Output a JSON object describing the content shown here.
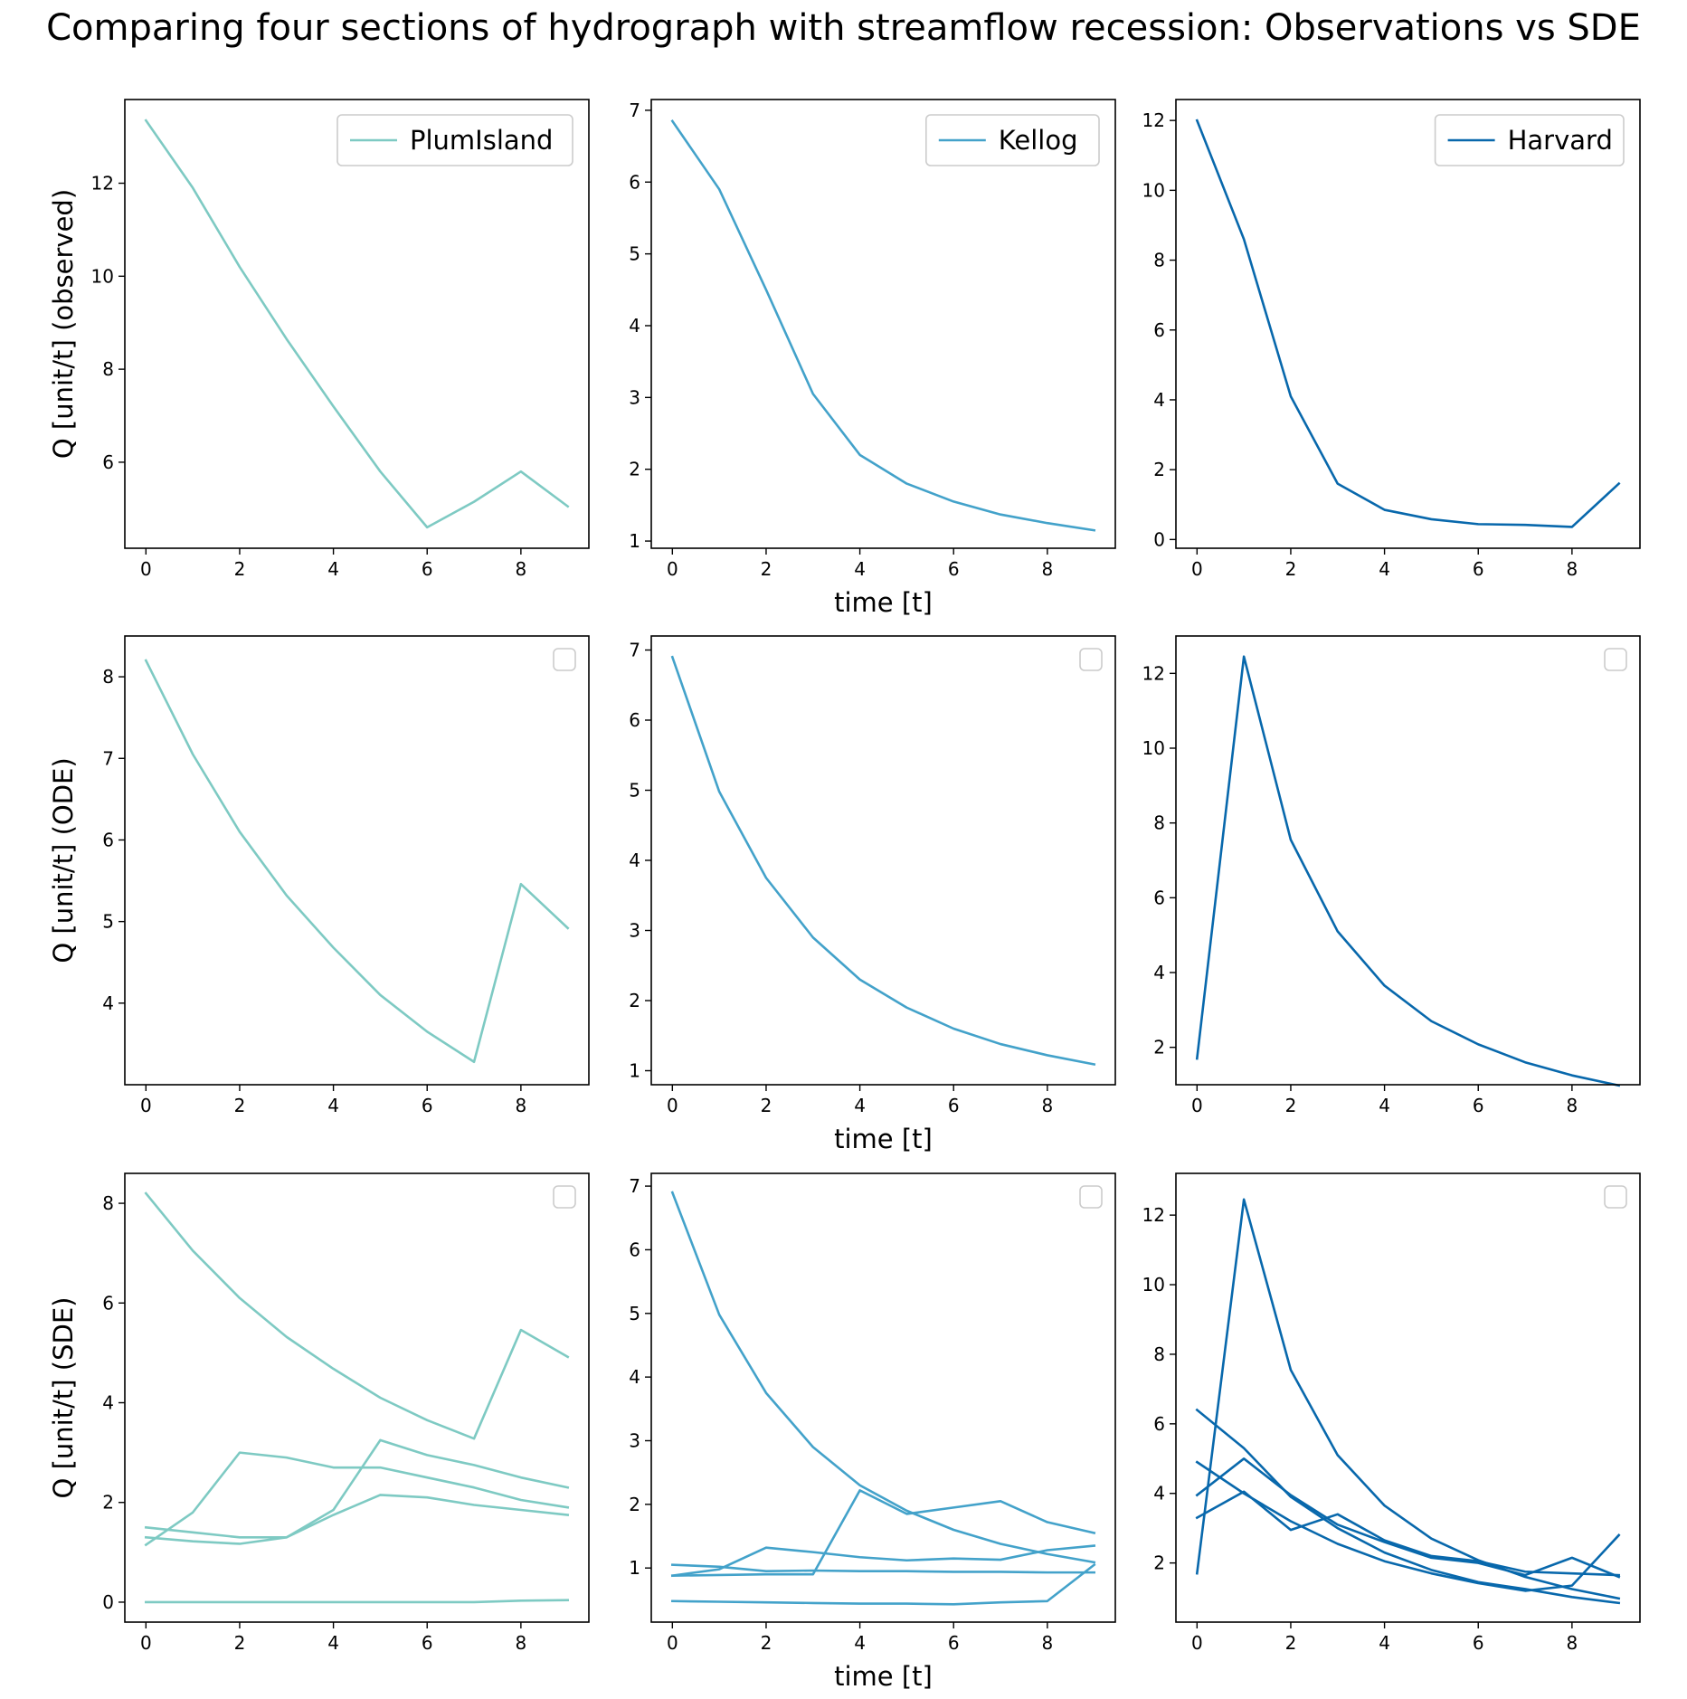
{
  "figure": {
    "title": "Comparing four sections of hydrograph with streamflow recession: Observations vs SDE"
  },
  "colors": {
    "PlumIsland": "#7ecac3",
    "Kellog": "#43a2ca",
    "Harvard": "#0868ac"
  },
  "chart_data": [
    {
      "type": "line",
      "panel": "row1-col1",
      "ylabel": "Q [unit/t] (observed)",
      "xlabel": "",
      "legend": {
        "visible": true,
        "placement": "top-right",
        "entries": [
          "PlumIsland"
        ]
      },
      "xlim": [
        -0.45,
        9.45
      ],
      "ylim": [
        4.15,
        13.8
      ],
      "xticks": [
        0,
        2,
        4,
        6,
        8
      ],
      "yticks": [
        6,
        8,
        10,
        12
      ],
      "series": [
        {
          "name": "PlumIsland",
          "color_key": "PlumIsland",
          "x": [
            0,
            1,
            2,
            3,
            4,
            5,
            6,
            7,
            8,
            9
          ],
          "y": [
            13.35,
            11.9,
            10.2,
            8.65,
            7.2,
            5.8,
            4.6,
            5.15,
            5.8,
            5.05
          ]
        }
      ]
    },
    {
      "type": "line",
      "panel": "row1-col2",
      "ylabel": "",
      "xlabel": "time [t]",
      "legend": {
        "visible": true,
        "placement": "top-right",
        "entries": [
          "Kellog"
        ]
      },
      "xlim": [
        -0.45,
        9.45
      ],
      "ylim": [
        0.9,
        7.15
      ],
      "xticks": [
        0,
        2,
        4,
        6,
        8
      ],
      "yticks": [
        1,
        2,
        3,
        4,
        5,
        6,
        7
      ],
      "series": [
        {
          "name": "Kellog",
          "color_key": "Kellog",
          "x": [
            0,
            1,
            2,
            3,
            4,
            5,
            6,
            7,
            8,
            9
          ],
          "y": [
            6.85,
            5.9,
            4.5,
            3.05,
            2.2,
            1.8,
            1.55,
            1.37,
            1.25,
            1.15
          ]
        }
      ]
    },
    {
      "type": "line",
      "panel": "row1-col3",
      "ylabel": "",
      "xlabel": "",
      "legend": {
        "visible": true,
        "placement": "top-right",
        "entries": [
          "Harvard"
        ]
      },
      "xlim": [
        -0.45,
        9.45
      ],
      "ylim": [
        -0.25,
        12.6
      ],
      "xticks": [
        0,
        2,
        4,
        6,
        8
      ],
      "yticks": [
        0,
        2,
        4,
        6,
        8,
        10,
        12
      ],
      "series": [
        {
          "name": "Harvard",
          "color_key": "Harvard",
          "x": [
            0,
            1,
            2,
            3,
            4,
            5,
            6,
            7,
            8,
            9
          ],
          "y": [
            12.0,
            8.6,
            4.1,
            1.6,
            0.85,
            0.58,
            0.44,
            0.42,
            0.36,
            1.6
          ]
        }
      ]
    },
    {
      "type": "line",
      "panel": "row2-col1",
      "ylabel": "Q [unit/t] (ODE)",
      "xlabel": "",
      "legend": {
        "visible": true,
        "placement": "top-right",
        "entries": []
      },
      "xlim": [
        -0.45,
        9.45
      ],
      "ylim": [
        3.0,
        8.5
      ],
      "xticks": [
        0,
        2,
        4,
        6,
        8
      ],
      "yticks": [
        4,
        5,
        6,
        7,
        8
      ],
      "series": [
        {
          "color_key": "PlumIsland",
          "x": [
            0,
            1,
            2,
            3,
            4,
            5,
            6,
            7,
            8,
            9
          ],
          "y": [
            8.2,
            7.05,
            6.1,
            5.32,
            4.68,
            4.1,
            3.65,
            3.28,
            5.46,
            4.92
          ]
        }
      ]
    },
    {
      "type": "line",
      "panel": "row2-col2",
      "ylabel": "",
      "xlabel": "time [t]",
      "legend": {
        "visible": true,
        "placement": "top-right",
        "entries": []
      },
      "xlim": [
        -0.45,
        9.45
      ],
      "ylim": [
        0.8,
        7.2
      ],
      "xticks": [
        0,
        2,
        4,
        6,
        8
      ],
      "yticks": [
        1,
        2,
        3,
        4,
        5,
        6,
        7
      ],
      "series": [
        {
          "color_key": "Kellog",
          "x": [
            0,
            1,
            2,
            3,
            4,
            5,
            6,
            7,
            8,
            9
          ],
          "y": [
            6.9,
            4.98,
            3.75,
            2.9,
            2.3,
            1.9,
            1.6,
            1.38,
            1.22,
            1.09
          ]
        }
      ]
    },
    {
      "type": "line",
      "panel": "row2-col3",
      "ylabel": "",
      "xlabel": "",
      "legend": {
        "visible": true,
        "placement": "top-right",
        "entries": []
      },
      "xlim": [
        -0.45,
        9.45
      ],
      "ylim": [
        1.0,
        13.0
      ],
      "xticks": [
        0,
        2,
        4,
        6,
        8
      ],
      "yticks": [
        2,
        4,
        6,
        8,
        10,
        12
      ],
      "series": [
        {
          "color_key": "Harvard",
          "x": [
            0,
            1,
            2,
            3,
            4,
            5,
            6,
            7,
            8,
            9
          ],
          "y": [
            1.7,
            12.45,
            7.55,
            5.1,
            3.65,
            2.7,
            2.08,
            1.6,
            1.25,
            0.98
          ]
        }
      ]
    },
    {
      "type": "line",
      "panel": "row3-col1",
      "ylabel": "Q [unit/t] (SDE)",
      "xlabel": "",
      "legend": {
        "visible": true,
        "placement": "top-right",
        "entries": []
      },
      "xlim": [
        -0.45,
        9.45
      ],
      "ylim": [
        -0.4,
        8.6
      ],
      "xticks": [
        0,
        2,
        4,
        6,
        8
      ],
      "yticks": [
        0,
        2,
        4,
        6,
        8
      ],
      "series": [
        {
          "color_key": "PlumIsland",
          "x": [
            0,
            1,
            2,
            3,
            4,
            5,
            6,
            7,
            8,
            9
          ],
          "y": [
            8.2,
            7.05,
            6.1,
            5.32,
            4.68,
            4.1,
            3.65,
            3.28,
            5.46,
            4.92
          ]
        },
        {
          "color_key": "PlumIsland",
          "x": [
            0,
            1,
            2,
            3,
            4,
            5,
            6,
            7,
            8,
            9
          ],
          "y": [
            1.15,
            1.8,
            3.0,
            2.9,
            2.7,
            2.7,
            2.5,
            2.3,
            2.05,
            1.9
          ]
        },
        {
          "color_key": "PlumIsland",
          "x": [
            0,
            1,
            2,
            3,
            4,
            5,
            6,
            7,
            8,
            9
          ],
          "y": [
            1.5,
            1.4,
            1.3,
            1.3,
            1.85,
            3.25,
            2.95,
            2.75,
            2.5,
            2.3
          ]
        },
        {
          "color_key": "PlumIsland",
          "x": [
            0,
            1,
            2,
            3,
            4,
            5,
            6,
            7,
            8,
            9
          ],
          "y": [
            1.3,
            1.22,
            1.17,
            1.3,
            1.75,
            2.15,
            2.1,
            1.95,
            1.85,
            1.75
          ]
        },
        {
          "color_key": "PlumIsland",
          "x": [
            0,
            1,
            2,
            3,
            4,
            5,
            6,
            7,
            8,
            9
          ],
          "y": [
            0.0,
            0.0,
            0.0,
            0.0,
            0.0,
            0.0,
            0.0,
            0.0,
            0.03,
            0.04
          ]
        }
      ]
    },
    {
      "type": "line",
      "panel": "row3-col2",
      "ylabel": "",
      "xlabel": "time [t]",
      "legend": {
        "visible": true,
        "placement": "top-right",
        "entries": []
      },
      "xlim": [
        -0.45,
        9.45
      ],
      "ylim": [
        0.15,
        7.2
      ],
      "xticks": [
        0,
        2,
        4,
        6,
        8
      ],
      "yticks": [
        1,
        2,
        3,
        4,
        5,
        6,
        7
      ],
      "series": [
        {
          "color_key": "Kellog",
          "x": [
            0,
            1,
            2,
            3,
            4,
            5,
            6,
            7,
            8,
            9
          ],
          "y": [
            6.9,
            4.98,
            3.75,
            2.9,
            2.3,
            1.9,
            1.6,
            1.38,
            1.22,
            1.09
          ]
        },
        {
          "color_key": "Kellog",
          "x": [
            0,
            1,
            2,
            3,
            4,
            5,
            6,
            7,
            8,
            9
          ],
          "y": [
            1.05,
            1.02,
            0.95,
            0.96,
            0.95,
            0.95,
            0.94,
            0.94,
            0.93,
            0.93
          ]
        },
        {
          "color_key": "Kellog",
          "x": [
            0,
            1,
            2,
            3,
            4,
            5,
            6,
            7,
            8,
            9
          ],
          "y": [
            0.88,
            0.89,
            0.9,
            0.9,
            2.22,
            1.85,
            1.95,
            2.05,
            1.72,
            1.55
          ]
        },
        {
          "color_key": "Kellog",
          "x": [
            0,
            1,
            2,
            3,
            4,
            5,
            6,
            7,
            8,
            9
          ],
          "y": [
            0.88,
            0.98,
            1.32,
            1.25,
            1.17,
            1.12,
            1.15,
            1.13,
            1.28,
            1.35
          ]
        },
        {
          "color_key": "Kellog",
          "x": [
            0,
            1,
            2,
            3,
            4,
            5,
            6,
            7,
            8,
            9
          ],
          "y": [
            0.48,
            0.47,
            0.46,
            0.45,
            0.44,
            0.44,
            0.43,
            0.46,
            0.48,
            1.05
          ]
        }
      ]
    },
    {
      "type": "line",
      "panel": "row3-col3",
      "ylabel": "",
      "xlabel": "",
      "legend": {
        "visible": true,
        "placement": "top-right",
        "entries": []
      },
      "xlim": [
        -0.45,
        9.45
      ],
      "ylim": [
        0.3,
        13.2
      ],
      "xticks": [
        0,
        2,
        4,
        6,
        8
      ],
      "yticks": [
        2,
        4,
        6,
        8,
        10,
        12
      ],
      "series": [
        {
          "color_key": "Harvard",
          "x": [
            0,
            1,
            2,
            3,
            4,
            5,
            6,
            7,
            8,
            9
          ],
          "y": [
            1.7,
            12.45,
            7.55,
            5.1,
            3.65,
            2.7,
            2.08,
            1.6,
            1.25,
            0.98
          ]
        },
        {
          "color_key": "Harvard",
          "x": [
            0,
            1,
            2,
            3,
            4,
            5,
            6,
            7,
            8,
            9
          ],
          "y": [
            6.4,
            5.3,
            3.9,
            3.0,
            2.3,
            1.8,
            1.45,
            1.25,
            1.02,
            0.85
          ]
        },
        {
          "color_key": "Harvard",
          "x": [
            0,
            1,
            2,
            3,
            4,
            5,
            6,
            7,
            8,
            9
          ],
          "y": [
            4.9,
            4.0,
            3.2,
            2.55,
            2.05,
            1.7,
            1.42,
            1.2,
            1.35,
            2.8
          ]
        },
        {
          "color_key": "Harvard",
          "x": [
            0,
            1,
            2,
            3,
            4,
            5,
            6,
            7,
            8,
            9
          ],
          "y": [
            3.95,
            5.0,
            3.95,
            3.1,
            2.6,
            2.15,
            2.0,
            1.65,
            2.15,
            1.6
          ]
        },
        {
          "color_key": "Harvard",
          "x": [
            0,
            1,
            2,
            3,
            4,
            5,
            6,
            7,
            8,
            9
          ],
          "y": [
            3.3,
            4.05,
            2.95,
            3.4,
            2.65,
            2.2,
            2.05,
            1.75,
            1.7,
            1.65
          ]
        }
      ]
    }
  ]
}
